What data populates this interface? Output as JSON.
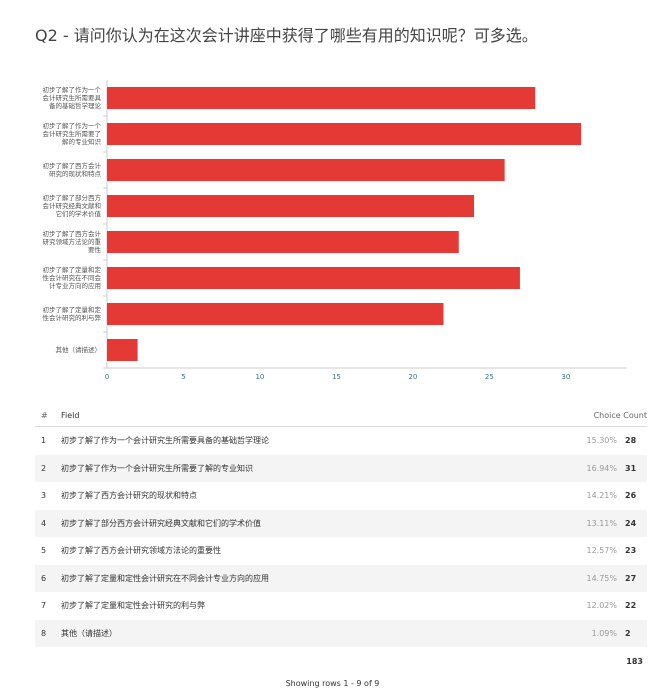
{
  "title": "Q2 - 请问你认为在这次会计讲座中获得了哪些有用的知识呢？可多选。",
  "chart_data": {
    "type": "bar",
    "orientation": "horizontal",
    "categories": [
      [
        "初步了解了作为一个",
        "会计研究生所需要具",
        "备的基础哲学理论"
      ],
      [
        "初步了解了作为一个",
        "会计研究生所需要了",
        "解的专业知识"
      ],
      [
        "初步了解了西方会计",
        "研究的现状和特点"
      ],
      [
        "初步了解了部分西方",
        "会计研究经典文献和",
        "它们的学术价值"
      ],
      [
        "初步了解了西方会计",
        "研究领域方法论的重",
        "要性"
      ],
      [
        "初步了解了定量和定",
        "性会计研究在不同会",
        "计专业方向的应用"
      ],
      [
        "初步了解了定量和定",
        "性会计研究的利与弊"
      ],
      [
        "其他（请描述）"
      ]
    ],
    "values": [
      28,
      31,
      26,
      24,
      23,
      27,
      22,
      2
    ],
    "xticks": [
      "0",
      "5",
      "10",
      "15",
      "20",
      "25",
      "30"
    ],
    "xlim": [
      0,
      34
    ],
    "color": "#e53935",
    "grid": false
  },
  "table": {
    "headers": [
      "#",
      "Field",
      "Choice Count"
    ],
    "rows": [
      [
        "1",
        "初步了解了作为一个会计研究生所需要具备的基础哲学理论",
        "15.30%",
        "28"
      ],
      [
        "2",
        "初步了解了作为一个会计研究生所需要了解的专业知识",
        "16.94%",
        "31"
      ],
      [
        "3",
        "初步了解了西方会计研究的现状和特点",
        "14.21%",
        "26"
      ],
      [
        "4",
        "初步了解了部分西方会计研究经典文献和它们的学术价值",
        "13.11%",
        "24"
      ],
      [
        "5",
        "初步了解了西方会计研究领域方法论的重要性",
        "12.57%",
        "23"
      ],
      [
        "6",
        "初步了解了定量和定性会计研究在不同会计专业方向的应用",
        "14.75%",
        "27"
      ],
      [
        "7",
        "初步了解了定量和定性会计研究的利与弊",
        "12.02%",
        "22"
      ],
      [
        "8",
        "其他（请描述）",
        "1.09%",
        "2"
      ]
    ],
    "total": "183",
    "showing": "Showing rows 1 - 9 of 9"
  }
}
